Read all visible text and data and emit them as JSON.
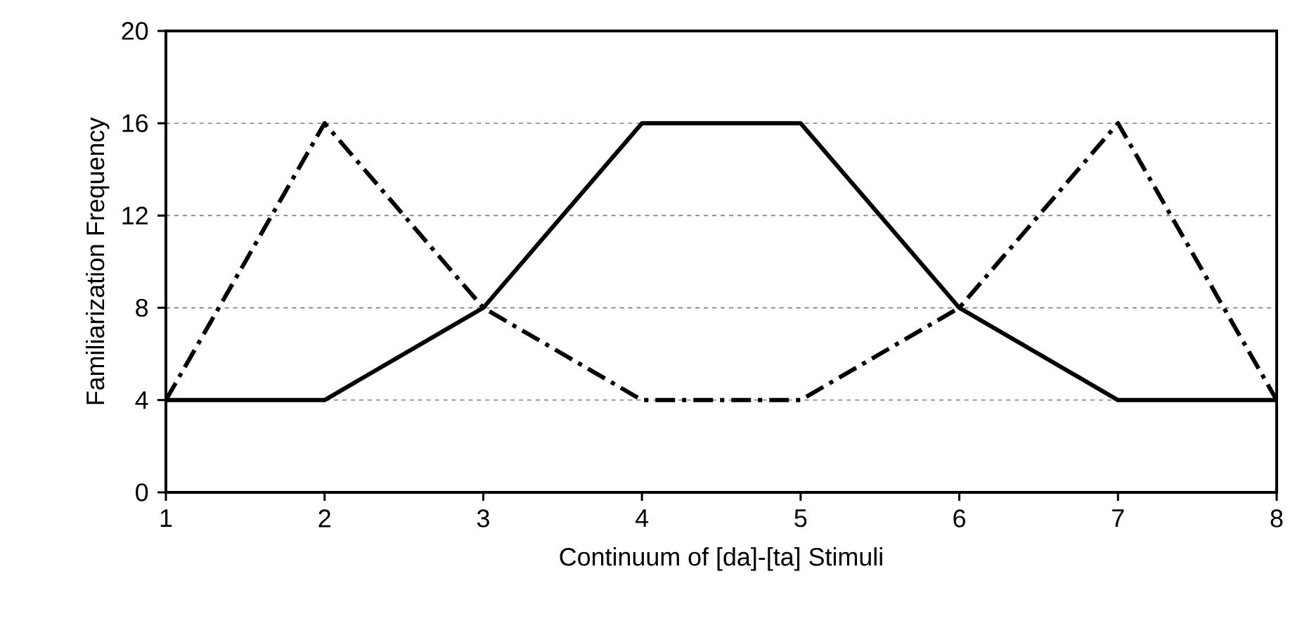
{
  "chart_data": {
    "type": "line",
    "xlabel": "Continuum of [da]-[ta] Stimuli",
    "ylabel": "Familiarization Frequency",
    "x": [
      1,
      2,
      3,
      4,
      5,
      6,
      7,
      8
    ],
    "series": [
      {
        "color": "#000000",
        "line_style": "solid",
        "values": [
          4,
          4,
          8,
          16,
          16,
          8,
          4,
          4
        ]
      },
      {
        "color": "#000000",
        "line_style": "dashed",
        "values": [
          4,
          16,
          8,
          4,
          4,
          8,
          16,
          4
        ]
      }
    ],
    "xlim": [
      1,
      8
    ],
    "xticks": [
      1,
      2,
      3,
      4,
      5,
      6,
      7,
      8
    ],
    "ylim": [
      0,
      20
    ],
    "yticks": [
      0,
      4,
      8,
      12,
      16,
      20
    ],
    "grid": "y",
    "marker": "none"
  }
}
